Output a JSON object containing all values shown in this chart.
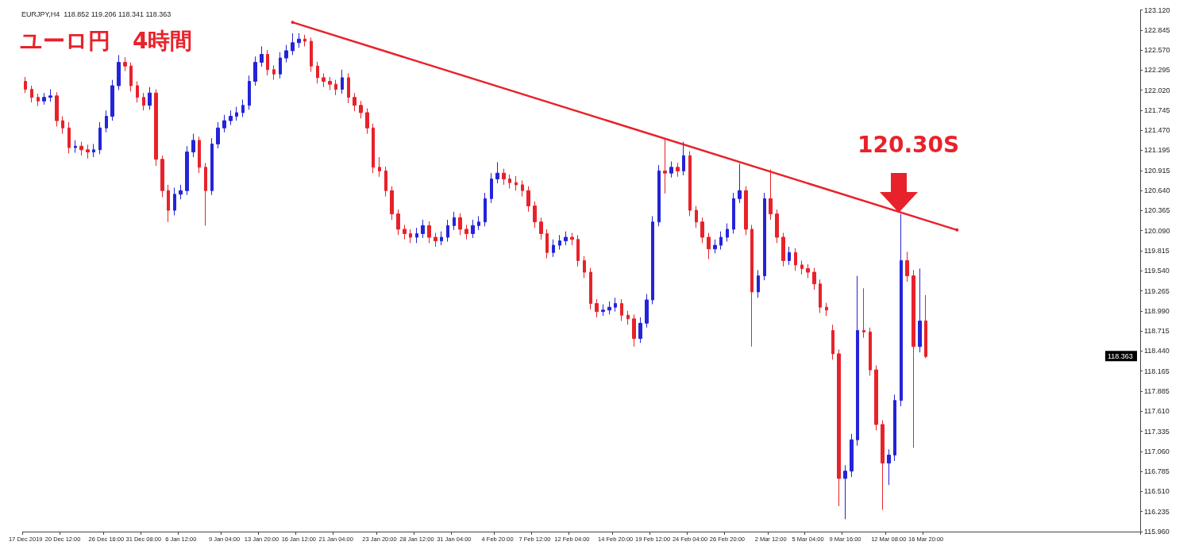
{
  "chart_data": {
    "type": "candlestick",
    "title": "ユーロ円　4時間",
    "subtitle": "EURJPY,H4  118.852 119.206 118.341 118.363",
    "annotations": [
      "120.30S",
      {
        "text": "118.363",
        "y": 118.363
      }
    ],
    "categories": [
      "17 Dec 2019",
      null,
      null,
      null,
      null,
      null,
      "20 Dec 12:00",
      null,
      null,
      null,
      null,
      null,
      null,
      "26 Dec 16:00",
      null,
      null,
      null,
      null,
      null,
      "31 Dec 08:00",
      null,
      null,
      null,
      null,
      null,
      "6 Jan 12:00",
      null,
      null,
      null,
      null,
      null,
      null,
      "9 Jan 04:00",
      null,
      null,
      null,
      null,
      null,
      "13 Jan 20:00",
      null,
      null,
      null,
      null,
      null,
      "16 Jan 12:00",
      null,
      null,
      null,
      null,
      null,
      "21 Jan 04:00",
      null,
      null,
      null,
      null,
      null,
      null,
      "23 Jan 20:00",
      null,
      null,
      null,
      null,
      null,
      "28 Jan 12:00",
      null,
      null,
      null,
      null,
      null,
      "31 Jan 04:00",
      null,
      null,
      null,
      null,
      null,
      null,
      "4 Feb 20:00",
      null,
      null,
      null,
      null,
      null,
      "7 Feb 12:00",
      null,
      null,
      null,
      null,
      null,
      "12 Feb 04:00",
      null,
      null,
      null,
      null,
      null,
      null,
      "14 Feb 20:00",
      null,
      null,
      null,
      null,
      null,
      "19 Feb 12:00",
      null,
      null,
      null,
      null,
      null,
      "24 Feb 04:00",
      null,
      null,
      null,
      null,
      null,
      "26 Feb 20:00",
      null,
      null,
      null,
      null,
      null,
      null,
      "2 Mar 12:00",
      null,
      null,
      null,
      null,
      null,
      "5 Mar 04:00",
      null,
      null,
      null,
      null,
      null,
      "9 Mar 16:00",
      null,
      null,
      null,
      null,
      null,
      null,
      "12 Mar 08:00",
      null,
      null,
      null,
      null,
      null,
      "16 Mar 20:00",
      null,
      null,
      null,
      null,
      null,
      null,
      null,
      null,
      null,
      null,
      null,
      null,
      null,
      null,
      null,
      null,
      null,
      null,
      null,
      null,
      null,
      null,
      null,
      null,
      null,
      null,
      null,
      null,
      null,
      null,
      null,
      null,
      null,
      null
    ],
    "ylim": [
      115.96,
      123.12
    ],
    "yticks": [
      {
        "value": 123.12,
        "label": "123.120"
      },
      {
        "value": 122.845,
        "label": "122.845"
      },
      {
        "value": 122.57,
        "label": "122.570"
      },
      {
        "value": 122.295,
        "label": "122.295"
      },
      {
        "value": 122.02,
        "label": "122.020"
      },
      {
        "value": 121.745,
        "label": "121.745"
      },
      {
        "value": 121.47,
        "label": "121.470"
      },
      {
        "value": 121.195,
        "label": "121.195"
      },
      {
        "value": 120.915,
        "label": "120.915"
      },
      {
        "value": 120.64,
        "label": "120.640"
      },
      {
        "value": 120.365,
        "label": "120.365"
      },
      {
        "value": 120.09,
        "label": "120.090"
      },
      {
        "value": 119.815,
        "label": "119.815"
      },
      {
        "value": 119.54,
        "label": "119.540"
      },
      {
        "value": 119.265,
        "label": "119.265"
      },
      {
        "value": 118.99,
        "label": "118.990"
      },
      {
        "value": 118.715,
        "label": "118.715"
      },
      {
        "value": 118.44,
        "label": "118.440"
      },
      {
        "value": 118.165,
        "label": "118.165"
      },
      {
        "value": 117.885,
        "label": "117.885"
      },
      {
        "value": 117.61,
        "label": "117.610"
      },
      {
        "value": 117.335,
        "label": "117.335"
      },
      {
        "value": 117.06,
        "label": "117.060"
      },
      {
        "value": 116.785,
        "label": "116.785"
      },
      {
        "value": 116.51,
        "label": "116.510"
      },
      {
        "value": 116.235,
        "label": "116.235"
      },
      {
        "value": 115.96,
        "label": "115.960"
      }
    ],
    "series": [
      {
        "colors": [
          "#e8222a",
          "#e8222a",
          "#e8222a",
          "#2424d8",
          "#2424d8",
          "#e8222a",
          "#e8222a",
          "#e8222a",
          "#2424d8",
          "#e8222a",
          "#e8222a",
          "#2424d8",
          "#2424d8",
          "#2424d8",
          "#2424d8",
          "#2424d8",
          "#e8222a",
          "#e8222a",
          "#e8222a",
          "#e8222a",
          "#2424d8",
          "#e8222a",
          "#e8222a",
          "#e8222a",
          "#2424d8",
          "#2424d8",
          "#2424d8",
          "#2424d8",
          "#e8222a",
          "#e8222a",
          "#2424d8",
          "#2424d8",
          "#2424d8",
          "#2424d8",
          "#2424d8",
          "#2424d8",
          "#2424d8",
          "#2424d8",
          "#2424d8",
          "#e8222a",
          "#e8222a",
          "#2424d8",
          "#2424d8",
          "#2424d8",
          "#2424d8",
          "#e8222a",
          "#e8222a",
          "#e8222a",
          "#e8222a",
          "#e8222a",
          "#e8222a",
          "#2424d8",
          "#e8222a",
          "#e8222a",
          "#e8222a",
          "#e8222a",
          "#e8222a",
          "#e8222a",
          "#e8222a",
          "#e8222a",
          "#e8222a",
          "#e8222a",
          "#e8222a",
          "#2424d8",
          "#2424d8",
          "#e8222a",
          "#e8222a",
          "#2424d8",
          "#2424d8",
          "#2424d8",
          "#e8222a",
          "#e8222a",
          "#2424d8",
          "#2424d8",
          "#2424d8",
          "#2424d8",
          "#2424d8",
          "#e8222a",
          "#e8222a",
          "#e8222a",
          "#e8222a",
          "#e8222a",
          "#e8222a",
          "#e8222a",
          "#e8222a",
          "#2424d8",
          "#2424d8",
          "#2424d8",
          "#e8222a",
          "#e8222a",
          "#e8222a",
          "#e8222a",
          "#e8222a",
          "#2424d8",
          "#2424d8",
          "#2424d8",
          "#e8222a",
          "#e8222a",
          "#e8222a",
          "#2424d8",
          "#2424d8",
          "#2424d8",
          "#2424d8",
          "#e8222a",
          "#2424d8",
          "#e8222a",
          "#2424d8",
          "#e8222a",
          "#e8222a",
          "#e8222a",
          "#e8222a",
          "#2424d8",
          "#2424d8",
          "#2424d8",
          "#2424d8",
          "#2424d8",
          "#e8222a",
          "#e8222a",
          "#2424d8",
          "#2424d8",
          "#e8222a",
          "#e8222a",
          "#e8222a",
          "#2424d8",
          "#e8222a",
          "#e8222a",
          "#e8222a",
          "#e8222a",
          "#e8222a",
          "#e8222a",
          "#e8222a",
          "#e8222a",
          "#2424d8",
          "#2424d8",
          "#2424d8",
          "#e8222a",
          "#e8222a",
          "#e8222a",
          "#e8222a",
          "#2424d8",
          "#2424d8",
          "#2424d8",
          "#e8222a",
          "#e8222a",
          "#2424d8",
          "#e8222a",
          null,
          null,
          null,
          null,
          null,
          null,
          null,
          null,
          null,
          null,
          null,
          null,
          null,
          null,
          null,
          null,
          null,
          null,
          null,
          null,
          null,
          null,
          null,
          null,
          null,
          null,
          null,
          null,
          null,
          null,
          null,
          null,
          null,
          null
        ],
        "ohlc": [
          [
            122.14,
            122.2,
            121.98,
            122.03
          ],
          [
            122.03,
            122.08,
            121.85,
            121.92
          ],
          [
            121.92,
            121.97,
            121.8,
            121.87
          ],
          [
            121.87,
            121.98,
            121.82,
            121.92
          ],
          [
            121.92,
            122.03,
            121.86,
            121.94
          ],
          [
            121.94,
            121.99,
            121.52,
            121.6
          ],
          [
            121.6,
            121.66,
            121.42,
            121.5
          ],
          [
            121.5,
            121.58,
            121.15,
            121.23
          ],
          [
            121.23,
            121.33,
            121.16,
            121.25
          ],
          [
            121.25,
            121.31,
            121.12,
            121.2
          ],
          [
            121.2,
            121.27,
            121.08,
            121.17
          ],
          [
            121.17,
            121.28,
            121.1,
            121.2
          ],
          [
            121.2,
            121.58,
            121.14,
            121.5
          ],
          [
            121.5,
            121.74,
            121.44,
            121.66
          ],
          [
            121.66,
            122.16,
            121.6,
            122.08
          ],
          [
            122.08,
            122.5,
            122.02,
            122.4
          ],
          [
            122.4,
            122.47,
            122.28,
            122.35
          ],
          [
            122.35,
            122.4,
            122.0,
            122.08
          ],
          [
            122.08,
            122.14,
            121.85,
            121.92
          ],
          [
            121.92,
            121.98,
            121.74,
            121.81
          ],
          [
            121.81,
            122.06,
            121.75,
            121.98
          ],
          [
            121.98,
            122.03,
            120.98,
            121.07
          ],
          [
            121.07,
            121.12,
            120.55,
            120.64
          ],
          [
            120.64,
            120.72,
            120.21,
            120.37
          ],
          [
            120.37,
            120.68,
            120.3,
            120.59
          ],
          [
            120.59,
            120.72,
            120.52,
            120.64
          ],
          [
            120.64,
            121.25,
            120.58,
            121.17
          ],
          [
            121.17,
            121.42,
            121.1,
            121.33
          ],
          [
            121.33,
            121.38,
            120.88,
            120.96
          ],
          [
            120.96,
            121.02,
            120.16,
            120.64
          ],
          [
            120.64,
            121.36,
            120.58,
            121.28
          ],
          [
            121.28,
            121.58,
            121.22,
            121.5
          ],
          [
            121.5,
            121.68,
            121.44,
            121.6
          ],
          [
            121.6,
            121.74,
            121.54,
            121.66
          ],
          [
            121.66,
            121.79,
            121.6,
            121.71
          ],
          [
            121.71,
            121.89,
            121.65,
            121.81
          ],
          [
            121.81,
            122.22,
            121.75,
            122.14
          ],
          [
            122.14,
            122.48,
            122.08,
            122.4
          ],
          [
            122.4,
            122.62,
            122.34,
            122.51
          ],
          [
            122.51,
            122.57,
            122.22,
            122.3
          ],
          [
            122.3,
            122.36,
            122.16,
            122.24
          ],
          [
            122.24,
            122.54,
            122.18,
            122.46
          ],
          [
            122.46,
            122.64,
            122.4,
            122.56
          ],
          [
            122.56,
            122.8,
            122.5,
            122.67
          ],
          [
            122.67,
            122.8,
            122.6,
            122.72
          ],
          [
            122.72,
            122.78,
            122.62,
            122.69
          ],
          [
            122.69,
            122.74,
            122.27,
            122.35
          ],
          [
            122.35,
            122.41,
            122.11,
            122.19
          ],
          [
            122.19,
            122.25,
            122.06,
            122.14
          ],
          [
            122.14,
            122.2,
            122.02,
            122.1
          ],
          [
            122.1,
            122.16,
            121.95,
            122.03
          ],
          [
            122.03,
            122.3,
            121.97,
            122.19
          ],
          [
            122.19,
            122.25,
            121.84,
            121.92
          ],
          [
            121.92,
            121.98,
            121.73,
            121.81
          ],
          [
            121.81,
            121.87,
            121.63,
            121.71
          ],
          [
            121.71,
            121.77,
            121.42,
            121.5
          ],
          [
            121.5,
            121.56,
            120.88,
            120.96
          ],
          [
            120.96,
            121.1,
            120.83,
            120.91
          ],
          [
            120.91,
            120.97,
            120.56,
            120.64
          ],
          [
            120.64,
            120.7,
            120.24,
            120.32
          ],
          [
            120.32,
            120.38,
            120.03,
            120.11
          ],
          [
            120.11,
            120.17,
            119.97,
            120.05
          ],
          [
            120.05,
            120.11,
            119.92,
            120.0
          ],
          [
            120.0,
            120.13,
            119.92,
            120.05
          ],
          [
            120.05,
            120.24,
            119.99,
            120.16
          ],
          [
            120.16,
            120.22,
            119.92,
            120.0
          ],
          [
            120.0,
            120.06,
            119.87,
            119.95
          ],
          [
            119.95,
            120.08,
            119.89,
            120.0
          ],
          [
            120.0,
            120.24,
            119.94,
            120.16
          ],
          [
            120.16,
            120.35,
            120.1,
            120.27
          ],
          [
            120.27,
            120.33,
            120.03,
            120.11
          ],
          [
            120.11,
            120.17,
            119.97,
            120.05
          ],
          [
            120.05,
            120.24,
            119.99,
            120.16
          ],
          [
            120.16,
            120.29,
            120.1,
            120.21
          ],
          [
            120.21,
            120.61,
            120.15,
            120.53
          ],
          [
            120.53,
            120.88,
            120.47,
            120.8
          ],
          [
            120.8,
            121.03,
            120.74,
            120.88
          ],
          [
            120.88,
            120.94,
            120.72,
            120.8
          ],
          [
            120.8,
            120.86,
            120.67,
            120.75
          ],
          [
            120.75,
            120.84,
            120.64,
            120.72
          ],
          [
            120.72,
            120.78,
            120.56,
            120.64
          ],
          [
            120.64,
            120.7,
            120.35,
            120.43
          ],
          [
            120.43,
            120.49,
            120.13,
            120.21
          ],
          [
            120.21,
            120.27,
            119.97,
            120.05
          ],
          [
            120.05,
            120.11,
            119.71,
            119.79
          ],
          [
            119.79,
            119.97,
            119.73,
            119.89
          ],
          [
            119.89,
            120.03,
            119.83,
            119.95
          ],
          [
            119.95,
            120.08,
            119.89,
            120.0
          ],
          [
            120.0,
            120.06,
            119.89,
            119.97
          ],
          [
            119.97,
            120.03,
            119.6,
            119.68
          ],
          [
            119.68,
            119.74,
            119.44,
            119.52
          ],
          [
            119.52,
            119.58,
            119.01,
            119.09
          ],
          [
            119.09,
            119.15,
            118.9,
            118.98
          ],
          [
            118.98,
            119.08,
            118.92,
            119.0
          ],
          [
            119.0,
            119.12,
            118.94,
            119.04
          ],
          [
            119.04,
            119.17,
            118.98,
            119.09
          ],
          [
            119.09,
            119.15,
            118.85,
            118.93
          ],
          [
            118.93,
            118.99,
            118.8,
            118.88
          ],
          [
            118.88,
            118.94,
            118.5,
            118.61
          ],
          [
            118.61,
            118.9,
            118.55,
            118.82
          ],
          [
            118.82,
            119.22,
            118.76,
            119.14
          ],
          [
            119.14,
            120.29,
            119.08,
            120.21
          ],
          [
            120.21,
            120.99,
            120.15,
            120.91
          ],
          [
            120.91,
            121.36,
            120.6,
            120.88
          ],
          [
            120.88,
            121.04,
            120.82,
            120.96
          ],
          [
            120.96,
            121.02,
            120.83,
            120.91
          ],
          [
            120.91,
            121.31,
            120.85,
            121.12
          ],
          [
            121.12,
            121.18,
            120.29,
            120.37
          ],
          [
            120.37,
            120.43,
            120.13,
            120.21
          ],
          [
            120.21,
            120.27,
            119.92,
            120.0
          ],
          [
            120.0,
            120.06,
            119.7,
            119.84
          ],
          [
            119.84,
            119.97,
            119.78,
            119.89
          ],
          [
            119.89,
            120.08,
            119.83,
            120.0
          ],
          [
            120.0,
            120.19,
            119.94,
            120.11
          ],
          [
            120.11,
            120.61,
            120.05,
            120.53
          ],
          [
            120.53,
            121.01,
            120.47,
            120.64
          ],
          [
            120.64,
            120.7,
            120.03,
            120.11
          ],
          [
            120.11,
            120.17,
            118.5,
            119.25
          ],
          [
            119.25,
            119.55,
            119.17,
            119.47
          ],
          [
            119.47,
            120.61,
            119.41,
            120.53
          ],
          [
            120.53,
            120.93,
            120.24,
            120.32
          ],
          [
            120.32,
            120.38,
            119.92,
            120.0
          ],
          [
            120.0,
            120.06,
            119.6,
            119.68
          ],
          [
            119.68,
            119.87,
            119.62,
            119.79
          ],
          [
            119.79,
            119.85,
            119.54,
            119.62
          ],
          [
            119.62,
            119.68,
            119.49,
            119.57
          ],
          [
            119.57,
            119.63,
            119.44,
            119.52
          ],
          [
            119.52,
            119.58,
            119.28,
            119.36
          ],
          [
            119.36,
            119.42,
            118.96,
            119.04
          ],
          [
            119.04,
            119.1,
            118.92,
            119.0
          ],
          [
            118.72,
            118.8,
            118.32,
            118.4
          ],
          [
            118.4,
            118.46,
            116.31,
            116.69
          ],
          [
            116.69,
            116.87,
            116.13,
            116.79
          ],
          [
            116.79,
            117.3,
            116.71,
            117.22
          ],
          [
            117.22,
            119.47,
            117.14,
            118.72
          ],
          [
            118.72,
            119.3,
            118.62,
            118.7
          ],
          [
            118.7,
            118.76,
            118.1,
            118.18
          ],
          [
            118.18,
            118.24,
            117.35,
            117.43
          ],
          [
            117.43,
            117.49,
            116.26,
            116.9
          ],
          [
            116.9,
            117.09,
            116.6,
            117.01
          ],
          [
            117.01,
            117.84,
            116.93,
            117.76
          ],
          [
            117.76,
            120.32,
            117.68,
            119.68
          ],
          [
            119.68,
            119.8,
            119.39,
            119.47
          ],
          [
            119.47,
            119.55,
            117.11,
            118.5
          ],
          [
            118.5,
            119.57,
            118.42,
            118.85
          ],
          [
            118.852,
            119.206,
            118.341,
            118.363
          ],
          null,
          null,
          null,
          null,
          null,
          null,
          null,
          null,
          null,
          null,
          null,
          null,
          null,
          null,
          null,
          null,
          null,
          null,
          null,
          null,
          null,
          null,
          null,
          null,
          null,
          null,
          null,
          null,
          null,
          null,
          null,
          null,
          null,
          null
        ]
      },
      {
        "type": "line",
        "color": "#e8222a",
        "values": [
          null,
          null,
          null,
          null,
          null,
          null,
          null,
          null,
          null,
          null,
          null,
          null,
          null,
          null,
          null,
          null,
          null,
          null,
          null,
          null,
          null,
          null,
          null,
          null,
          null,
          null,
          null,
          null,
          null,
          null,
          null,
          null,
          null,
          null,
          null,
          null,
          null,
          null,
          null,
          null,
          null,
          null,
          null,
          122.95,
          null,
          null,
          null,
          null,
          null,
          null,
          null,
          null,
          null,
          null,
          null,
          null,
          null,
          null,
          null,
          null,
          null,
          null,
          null,
          null,
          null,
          null,
          null,
          null,
          null,
          null,
          null,
          null,
          null,
          null,
          null,
          null,
          null,
          null,
          null,
          null,
          null,
          null,
          null,
          null,
          null,
          null,
          null,
          null,
          null,
          null,
          null,
          null,
          null,
          null,
          null,
          null,
          null,
          null,
          null,
          null,
          null,
          null,
          null,
          null,
          null,
          null,
          null,
          null,
          null,
          null,
          null,
          null,
          null,
          null,
          null,
          null,
          null,
          null,
          null,
          null,
          null,
          null,
          null,
          null,
          null,
          null,
          null,
          null,
          null,
          null,
          null,
          null,
          null,
          null,
          null,
          null,
          null,
          null,
          null,
          null,
          null,
          null,
          null,
          null,
          null,
          null,
          null,
          null,
          null,
          null,
          120.1,
          null,
          null,
          null,
          null,
          null,
          null,
          null,
          null,
          null,
          null,
          null,
          null,
          null,
          null,
          null,
          null,
          null,
          null,
          null,
          null,
          null,
          null,
          null,
          null,
          null,
          null,
          null,
          null,
          null
        ]
      }
    ]
  }
}
